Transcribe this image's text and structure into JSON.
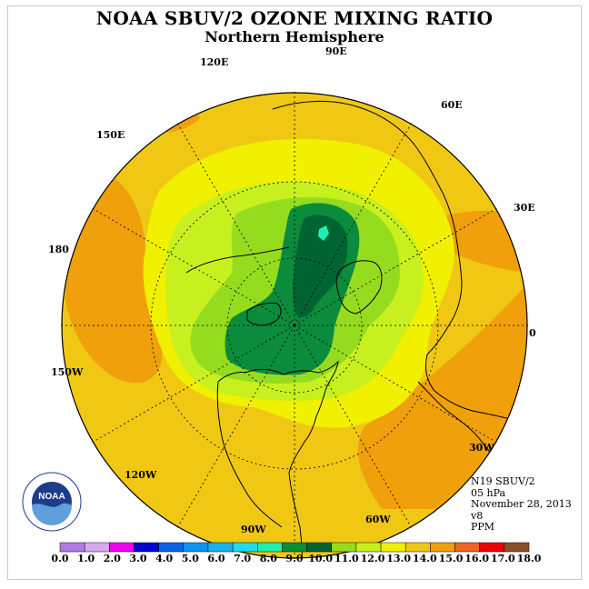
{
  "header": {
    "title": "NOAA SBUV/2 OZONE MIXING RATIO",
    "subtitle": "Northern Hemisphere"
  },
  "longitude_labels": [
    "90E",
    "60E",
    "30E",
    "0",
    "30W",
    "60W",
    "90W",
    "120W",
    "150W",
    "180",
    "150E",
    "120E"
  ],
  "info": {
    "instrument": "N19 SBUV/2",
    "level": "05 hPa",
    "date": "November 28, 2013",
    "version": "v8",
    "units": "PPM"
  },
  "logo": {
    "text": "NOAA",
    "ring_text": "NATIONAL OCEANIC AND ATMOSPHERIC ADMINISTRATION · U.S. DEPARTMENT OF COMMERCE"
  },
  "colorbar": {
    "ticks": [
      "0.0",
      "1.0",
      "2.0",
      "3.0",
      "4.0",
      "5.0",
      "6.0",
      "7.0",
      "8.0",
      "9.0",
      "10.0",
      "11.0",
      "12.0",
      "13.0",
      "14.0",
      "15.0",
      "16.0",
      "17.0",
      "18.0"
    ],
    "colors": [
      "#b07ae8",
      "#d9a8f0",
      "#f000f0",
      "#0000d8",
      "#0a64e6",
      "#0a96f0",
      "#14b4f0",
      "#1edcf0",
      "#1ef0b4",
      "#0a8c3c",
      "#006432",
      "#96dc1e",
      "#c8f01e",
      "#f0f000",
      "#f0c814",
      "#f0a00a",
      "#f0641e",
      "#f00000",
      "#8c5028"
    ]
  },
  "colors": {
    "background_ppm": "#f0c814",
    "enhanced_ppm": "#f0a00a",
    "yellow_ppm": "#f0f000",
    "lime_ppm": "#c8f01e",
    "green_ppm": "#96dc1e",
    "dark_green_ppm": "#0a8c3c",
    "darkest_green_ppm": "#006432",
    "cyan_ppm": "#1ef0b4"
  }
}
